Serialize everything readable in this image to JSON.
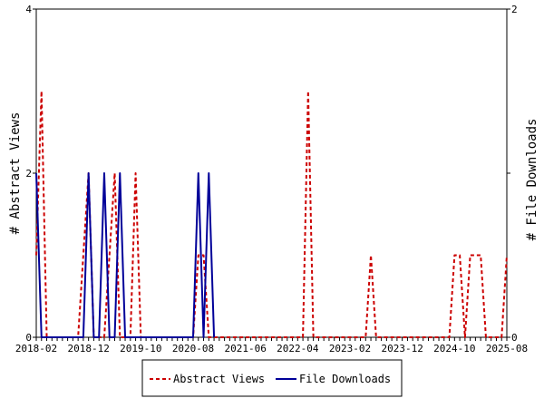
{
  "chart_data": {
    "type": "line",
    "title": "",
    "y_left_label": "# Abstract Views",
    "y_right_label": "# File Downloads",
    "y_left_range": [
      0,
      4
    ],
    "y_right_range": [
      0,
      2
    ],
    "y_left_ticks": [
      "0",
      "2",
      "4"
    ],
    "y_right_ticks": [
      "0",
      "1",
      "2"
    ],
    "x_range": [
      "2018-02",
      "2025-08"
    ],
    "x_tick_labels": [
      "2018-02",
      "2018-12",
      "2019-10",
      "2020-08",
      "2021-06",
      "2022-04",
      "2023-02",
      "2023-12",
      "2024-10",
      "2025-08"
    ],
    "grid": false,
    "legend_position": "bottom",
    "series": [
      {
        "name": "Abstract Views",
        "axis": "left",
        "color": "#cc0000",
        "style": "dashed",
        "points": [
          [
            "2018-02",
            1
          ],
          [
            "2018-03",
            3
          ],
          [
            "2018-04",
            0
          ],
          [
            "2018-10",
            0
          ],
          [
            "2018-12",
            2
          ],
          [
            "2019-01",
            0
          ],
          [
            "2019-03",
            0
          ],
          [
            "2019-05",
            2
          ],
          [
            "2019-06",
            0
          ],
          [
            "2019-08",
            0
          ],
          [
            "2019-09",
            2
          ],
          [
            "2019-10",
            0
          ],
          [
            "2020-08",
            0
          ],
          [
            "2020-09",
            1
          ],
          [
            "2020-10",
            1
          ],
          [
            "2020-11",
            0
          ],
          [
            "2022-05",
            0
          ],
          [
            "2022-06",
            3
          ],
          [
            "2022-07",
            0
          ],
          [
            "2023-05",
            0
          ],
          [
            "2023-06",
            1
          ],
          [
            "2023-07",
            0
          ],
          [
            "2024-09",
            0
          ],
          [
            "2024-10",
            1
          ],
          [
            "2024-11",
            1
          ],
          [
            "2024-12",
            0
          ],
          [
            "2025-01",
            1
          ],
          [
            "2025-02",
            1
          ],
          [
            "2025-03",
            1
          ],
          [
            "2025-04",
            0
          ],
          [
            "2025-07",
            0
          ],
          [
            "2025-08",
            1
          ]
        ]
      },
      {
        "name": "File Downloads",
        "axis": "right",
        "color": "#000099",
        "style": "solid",
        "points": [
          [
            "2018-02",
            1
          ],
          [
            "2018-03",
            0
          ],
          [
            "2018-11",
            0
          ],
          [
            "2018-12",
            1
          ],
          [
            "2019-01",
            0
          ],
          [
            "2019-02",
            0
          ],
          [
            "2019-03",
            1
          ],
          [
            "2019-04",
            0
          ],
          [
            "2019-05",
            0
          ],
          [
            "2019-06",
            1
          ],
          [
            "2019-07",
            0
          ],
          [
            "2020-08",
            0
          ],
          [
            "2020-09",
            1
          ],
          [
            "2020-10",
            0
          ],
          [
            "2020-11",
            1
          ],
          [
            "2020-12",
            0
          ]
        ]
      }
    ]
  }
}
